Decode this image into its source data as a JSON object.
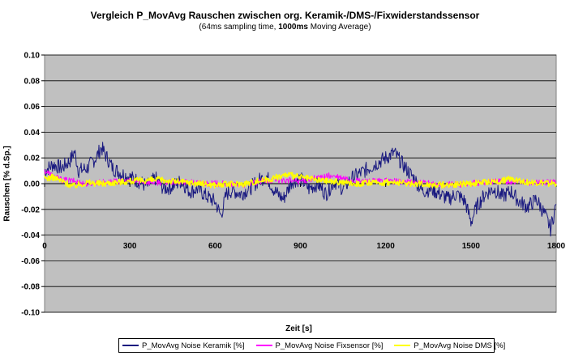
{
  "chart_data": {
    "type": "line",
    "title": "Vergleich P_MovAvg Rauschen zwischen org. Keramik-/DMS-/Fixwiderstandssensor",
    "subtitle_prefix": "(64ms sampling time, ",
    "subtitle_bold": "1000ms",
    "subtitle_suffix": " Moving Average)",
    "xlabel": "Zeit [s]",
    "ylabel": "Rauschen [% d.Sp.]",
    "xlim": [
      0,
      1800
    ],
    "ylim": [
      -0.1,
      0.1
    ],
    "x_ticks": [
      "0",
      "300",
      "600",
      "900",
      "1200",
      "1500",
      "1800"
    ],
    "y_ticks": [
      "0.10",
      "0.08",
      "0.06",
      "0.04",
      "0.02",
      "0.00",
      "-0.02",
      "-0.04",
      "-0.06",
      "-0.08",
      "-0.10"
    ],
    "y_tick_values": [
      0.1,
      0.08,
      0.06,
      0.04,
      0.02,
      0.0,
      -0.02,
      -0.04,
      -0.06,
      -0.08,
      -0.1
    ],
    "x_tick_values": [
      0,
      300,
      600,
      900,
      1200,
      1500,
      1800
    ],
    "grid": true,
    "legend_position": "bottom",
    "series": [
      {
        "name": "P_MovAvg Noise Keramik [%]",
        "color": "#1a1a80",
        "x": [
          0,
          30,
          60,
          90,
          105,
          120,
          150,
          180,
          200,
          215,
          240,
          270,
          300,
          330,
          360,
          390,
          420,
          450,
          480,
          510,
          540,
          570,
          600,
          620,
          640,
          660,
          690,
          720,
          750,
          780,
          810,
          840,
          870,
          900,
          930,
          960,
          990,
          1020,
          1050,
          1080,
          1110,
          1140,
          1170,
          1200,
          1230,
          1250,
          1270,
          1300,
          1330,
          1360,
          1390,
          1420,
          1450,
          1480,
          1500,
          1520,
          1550,
          1580,
          1610,
          1640,
          1670,
          1700,
          1730,
          1760,
          1780,
          1800
        ],
        "values": [
          0.01,
          0.015,
          0.012,
          0.018,
          0.025,
          0.01,
          0.012,
          0.02,
          0.028,
          0.022,
          0.012,
          0.008,
          0.005,
          0.002,
          -0.002,
          0.004,
          -0.004,
          -0.002,
          0.002,
          -0.006,
          -0.004,
          -0.01,
          -0.014,
          -0.025,
          -0.008,
          -0.005,
          -0.008,
          -0.004,
          0.002,
          0.006,
          -0.006,
          -0.012,
          0.002,
          0.004,
          -0.004,
          0.0,
          -0.008,
          0.002,
          -0.004,
          0.004,
          0.008,
          0.012,
          0.016,
          0.02,
          0.024,
          0.018,
          0.012,
          0.004,
          -0.006,
          -0.004,
          -0.008,
          -0.012,
          -0.008,
          -0.014,
          -0.03,
          -0.018,
          -0.008,
          -0.004,
          -0.01,
          -0.006,
          -0.014,
          -0.018,
          -0.012,
          -0.024,
          -0.035,
          -0.016
        ]
      },
      {
        "name": "P_MovAvg Noise Fixsensor [%]",
        "color": "#ff00ff",
        "x": [
          0,
          30,
          60,
          100,
          150,
          200,
          300,
          400,
          500,
          600,
          700,
          800,
          900,
          1000,
          1100,
          1200,
          1300,
          1400,
          1500,
          1600,
          1700,
          1800
        ],
        "values": [
          0.01,
          0.006,
          0.003,
          0.002,
          0.0,
          0.001,
          0.002,
          0.001,
          0.001,
          0.0,
          -0.001,
          0.003,
          0.002,
          0.006,
          0.002,
          0.002,
          0.001,
          -0.001,
          0.0,
          0.002,
          0.001,
          0.001
        ]
      },
      {
        "name": "P_MovAvg Noise DMS [%]",
        "color": "#ffff00",
        "x": [
          0,
          30,
          60,
          100,
          150,
          200,
          300,
          400,
          500,
          600,
          700,
          800,
          850,
          900,
          950,
          1000,
          1100,
          1200,
          1300,
          1400,
          1500,
          1600,
          1650,
          1700,
          1800
        ],
        "values": [
          0.004,
          0.005,
          0.002,
          -0.002,
          0.001,
          0.0,
          0.002,
          0.003,
          0.001,
          -0.001,
          0.0,
          0.004,
          0.007,
          0.005,
          0.003,
          0.002,
          0.0,
          0.001,
          0.0,
          -0.001,
          0.0,
          0.002,
          0.004,
          0.001,
          0.0
        ]
      }
    ]
  }
}
